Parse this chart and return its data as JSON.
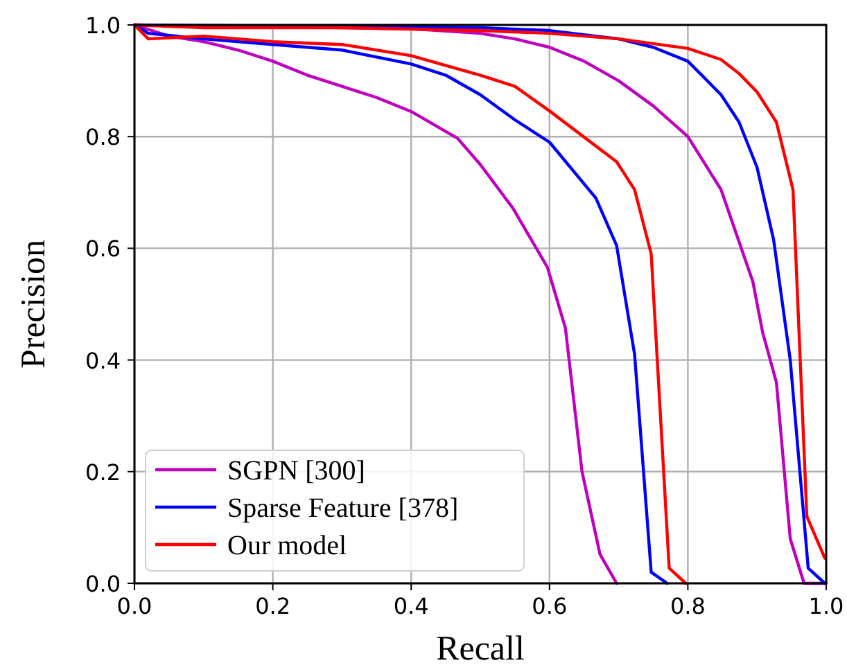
{
  "chart_data": {
    "type": "line",
    "xlabel": "Recall",
    "ylabel": "Precision",
    "xlim": [
      0,
      1
    ],
    "ylim": [
      0,
      1
    ],
    "xticks": [
      {
        "value": 0,
        "label": "0.0"
      },
      {
        "value": 0.2,
        "label": "0.2"
      },
      {
        "value": 0.4,
        "label": "0.4"
      },
      {
        "value": 0.6,
        "label": "0.6"
      },
      {
        "value": 0.8,
        "label": "0.8"
      },
      {
        "value": 1,
        "label": "1.0"
      }
    ],
    "yticks": [
      {
        "value": 0,
        "label": "0.0"
      },
      {
        "value": 0.2,
        "label": "0.2"
      },
      {
        "value": 0.4,
        "label": "0.4"
      },
      {
        "value": 0.6,
        "label": "0.6"
      },
      {
        "value": 0.8,
        "label": "0.8"
      },
      {
        "value": 1,
        "label": "1.0"
      }
    ],
    "grid": true,
    "legend": "bottom left",
    "marker": "none",
    "line_style": "solid",
    "series": [
      {
        "name": "SGPN  [300]",
        "color": "#bf00bf",
        "x": [
          0,
          0.05,
          0.1,
          0.15,
          0.2,
          0.25,
          0.3,
          0.35,
          0.4,
          0.467,
          0.5,
          0.547,
          0.597,
          0.623,
          0.647,
          0.673,
          0.697
        ],
        "values": [
          1,
          0.98,
          0.97,
          0.955,
          0.935,
          0.91,
          0.89,
          0.87,
          0.845,
          0.797,
          0.75,
          0.672,
          0.566,
          0.457,
          0.2,
          0.052,
          0
        ]
      },
      {
        "name": "Sparse Feature [378]",
        "color": "#0000ff",
        "x": [
          0,
          0.02,
          0.1,
          0.2,
          0.3,
          0.4,
          0.45,
          0.5,
          0.55,
          0.6,
          0.667,
          0.697,
          0.723,
          0.747,
          0.77
        ],
        "values": [
          1,
          0.985,
          0.975,
          0.965,
          0.955,
          0.93,
          0.91,
          0.875,
          0.83,
          0.79,
          0.69,
          0.605,
          0.41,
          0.02,
          0
        ]
      },
      {
        "name": "Our model",
        "color": "#ff0000",
        "x": [
          0,
          0.02,
          0.1,
          0.2,
          0.3,
          0.4,
          0.5,
          0.55,
          0.6,
          0.697,
          0.723,
          0.747,
          0.773,
          0.797
        ],
        "values": [
          1,
          0.975,
          0.98,
          0.97,
          0.965,
          0.945,
          0.91,
          0.89,
          0.846,
          0.755,
          0.705,
          0.59,
          0.027,
          0
        ]
      },
      {
        "color": "#bf00bf",
        "x": [
          0,
          0.1,
          0.2,
          0.3,
          0.4,
          0.5,
          0.55,
          0.6,
          0.65,
          0.7,
          0.75,
          0.8,
          0.848,
          0.894,
          0.908,
          0.928,
          0.948,
          0.968,
          1
        ],
        "values": [
          1,
          0.998,
          0.997,
          0.995,
          0.993,
          0.985,
          0.975,
          0.96,
          0.935,
          0.9,
          0.855,
          0.8,
          0.705,
          0.54,
          0.45,
          0.36,
          0.08,
          0,
          0
        ]
      },
      {
        "color": "#0000ff",
        "x": [
          0,
          0.5,
          0.6,
          0.7,
          0.75,
          0.8,
          0.848,
          0.874,
          0.9,
          0.924,
          0.948,
          0.974,
          0.998
        ],
        "values": [
          1,
          0.995,
          0.99,
          0.975,
          0.96,
          0.935,
          0.875,
          0.826,
          0.745,
          0.615,
          0.4,
          0.027,
          0
        ]
      },
      {
        "color": "#ff0000",
        "x": [
          0,
          0.1,
          0.3,
          0.5,
          0.6,
          0.7,
          0.8,
          0.848,
          0.874,
          0.9,
          0.928,
          0.952,
          0.972,
          0.998
        ],
        "values": [
          1,
          0.995,
          0.995,
          0.99,
          0.985,
          0.975,
          0.958,
          0.938,
          0.913,
          0.88,
          0.826,
          0.705,
          0.12,
          0.045
        ]
      }
    ]
  }
}
